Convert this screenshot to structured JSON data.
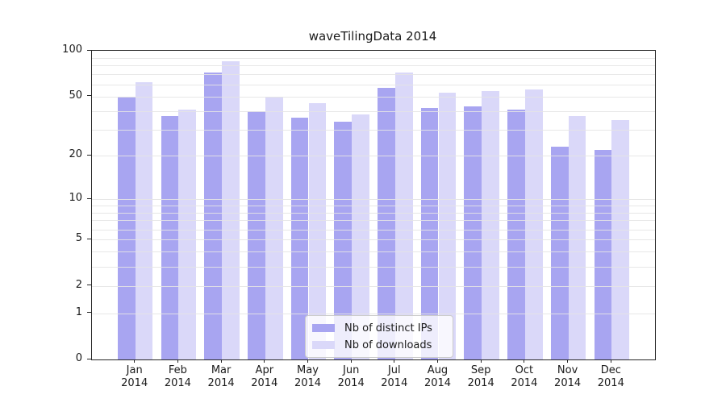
{
  "chart_data": {
    "type": "bar",
    "title": "waveTilingData 2014",
    "categories": [
      "Jan",
      "Feb",
      "Mar",
      "Apr",
      "May",
      "Jun",
      "Jul",
      "Aug",
      "Sep",
      "Oct",
      "Nov",
      "Dec"
    ],
    "category_year": "2014",
    "series": [
      {
        "name": "Nb of distinct IPs",
        "color": "#a8a5f1",
        "values": [
          50,
          37,
          72,
          40,
          36,
          34,
          57,
          42,
          43,
          41,
          23,
          22
        ]
      },
      {
        "name": "Nb of downloads",
        "color": "#dad8f9",
        "values": [
          62,
          41,
          85,
          50,
          45,
          38,
          72,
          53,
          54,
          56,
          37,
          35
        ]
      }
    ],
    "y_axis": {
      "scale": "log10(1+v)",
      "ylim": [
        0,
        100
      ],
      "tick_values": [
        0,
        1,
        2,
        5,
        10,
        20,
        50,
        100
      ],
      "gridline_values": [
        1,
        2,
        3,
        4,
        5,
        6,
        7,
        8,
        9,
        10,
        20,
        30,
        40,
        50,
        60,
        70,
        80,
        90
      ]
    },
    "legend": {
      "position": "lower center",
      "entries": [
        "Nb of distinct IPs",
        "Nb of downloads"
      ]
    },
    "grid": true,
    "colors": {
      "gridline": "#e8e8e8",
      "axis": "#262626",
      "text": "#1a1a1a",
      "legend_border": "#cccccc"
    }
  }
}
